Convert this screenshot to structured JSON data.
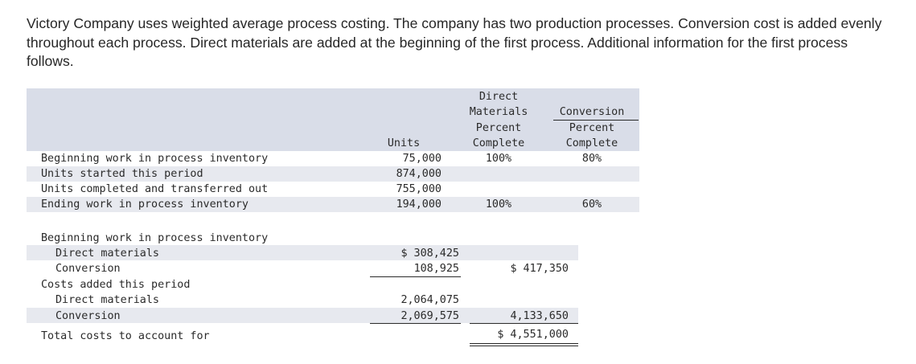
{
  "intro_text": "Victory Company uses weighted average process costing. The company has two production processes. Conversion cost is added evenly throughout each process. Direct materials are added at the beginning of the first process. Additional information for the first process follows.",
  "units_table": {
    "headers": {
      "units": "Units",
      "dm_top1": "Direct",
      "dm_top2": "Materials",
      "dm_pct1": "Percent",
      "dm_pct2": "Complete",
      "conv_top": "Conversion",
      "conv_pct1": "Percent",
      "conv_pct2": "Complete"
    },
    "rows": [
      {
        "label": "Beginning work in process inventory",
        "units": "75,000",
        "dm": "100%",
        "conv": "80%"
      },
      {
        "label": "Units started this period",
        "units": "874,000",
        "dm": "",
        "conv": ""
      },
      {
        "label": "Units completed and transferred out",
        "units": "755,000",
        "dm": "",
        "conv": ""
      },
      {
        "label": "Ending work in process inventory",
        "units": "194,000",
        "dm": "100%",
        "conv": "60%"
      }
    ]
  },
  "costs_table": {
    "bwip_label": "Beginning work in process inventory",
    "bwip_dm_label": "Direct materials",
    "bwip_dm_value": "$ 308,425",
    "bwip_conv_label": "Conversion",
    "bwip_conv_value": "108,925",
    "bwip_total": "$ 417,350",
    "added_label": "Costs added this period",
    "added_dm_label": "Direct materials",
    "added_dm_value": "2,064,075",
    "added_conv_label": "Conversion",
    "added_conv_value": "2,069,575",
    "added_total": "4,133,650",
    "total_label": "Total costs to account for",
    "total_value": "$ 4,551,000"
  }
}
